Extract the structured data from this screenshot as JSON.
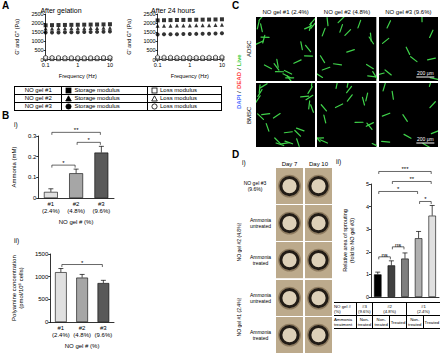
{
  "chart_data": [
    {
      "type": "scatter",
      "title": "After gelation",
      "x_label": "Frequency (Hz)",
      "y_label": "G' and G'' (Pa)",
      "log": "x",
      "grid": false,
      "x": [
        0.1,
        0.158,
        0.251,
        0.398,
        0.631,
        1,
        1.585,
        2.512,
        3.981,
        6.31,
        10
      ],
      "xlim": [
        0.1,
        10
      ],
      "xticks": [
        0.1,
        1,
        10
      ],
      "ylim": [
        0,
        2500
      ],
      "yticks": [
        0,
        500,
        1000,
        1500,
        2000,
        2500
      ],
      "series": [
        {
          "marker": "square",
          "color": "#000000",
          "values": [
            1880,
            1890,
            1895,
            1900,
            1905,
            1910,
            1915,
            1920,
            1925,
            1930,
            1940
          ]
        },
        {
          "marker": "square-open",
          "color": "#000000",
          "values": [
            60,
            55,
            50,
            48,
            46,
            45,
            46,
            48,
            52,
            58,
            66
          ]
        },
        {
          "marker": "triangle",
          "color": "#000000",
          "values": [
            1700,
            1705,
            1710,
            1715,
            1720,
            1722,
            1725,
            1730,
            1735,
            1740,
            1750
          ]
        },
        {
          "marker": "triangle-open",
          "color": "#000000",
          "values": [
            90,
            85,
            80,
            76,
            74,
            72,
            73,
            76,
            80,
            86,
            95
          ]
        },
        {
          "marker": "circle",
          "color": "#000000",
          "values": [
            1480,
            1485,
            1490,
            1495,
            1500,
            1505,
            1510,
            1515,
            1520,
            1528,
            1540
          ]
        },
        {
          "marker": "circle-open",
          "color": "#000000",
          "values": [
            120,
            115,
            110,
            106,
            102,
            100,
            101,
            104,
            108,
            115,
            125
          ]
        }
      ]
    },
    {
      "type": "scatter",
      "title": "After 24 hours",
      "x_label": "Frequency (Hz)",
      "y_label": "G' and G'' (Pa)",
      "log": "x",
      "grid": false,
      "x": [
        0.1,
        0.158,
        0.251,
        0.398,
        0.631,
        1,
        1.585,
        2.512,
        3.981,
        6.31,
        10
      ],
      "xlim": [
        0.1,
        10
      ],
      "xticks": [
        0.1,
        1,
        10
      ],
      "ylim": [
        0,
        2500
      ],
      "yticks": [
        0,
        500,
        1000,
        1500,
        2000,
        2500
      ],
      "series": [
        {
          "marker": "square",
          "color": "#000000",
          "values": [
            2150,
            2160,
            2165,
            2170,
            2175,
            2180,
            2185,
            2190,
            2195,
            2200,
            2210
          ]
        },
        {
          "marker": "square-open",
          "color": "#000000",
          "values": [
            70,
            66,
            62,
            58,
            56,
            55,
            56,
            58,
            62,
            68,
            76
          ]
        },
        {
          "marker": "triangle",
          "color": "#000000",
          "values": [
            1850,
            1855,
            1860,
            1865,
            1870,
            1875,
            1880,
            1885,
            1890,
            1896,
            1905
          ]
        },
        {
          "marker": "triangle-open",
          "color": "#000000",
          "values": [
            100,
            95,
            90,
            86,
            84,
            82,
            83,
            86,
            90,
            96,
            105
          ]
        },
        {
          "marker": "circle",
          "color": "#000000",
          "values": [
            1380,
            1385,
            1390,
            1395,
            1400,
            1405,
            1410,
            1415,
            1420,
            1428,
            1440
          ]
        },
        {
          "marker": "circle-open",
          "color": "#000000",
          "values": [
            140,
            134,
            128,
            124,
            120,
            118,
            119,
            122,
            126,
            132,
            142
          ]
        }
      ]
    },
    {
      "type": "bar",
      "x_label": "NO gel # (%)",
      "y_label": "Ammonia (mM)",
      "grid": false,
      "categories": [
        "#1\n(2.4%)",
        "#2\n(4.8%)",
        "#3\n(9.6%)"
      ],
      "values": [
        0.03,
        0.12,
        0.22
      ],
      "errors": [
        0.015,
        0.02,
        0.03
      ],
      "colors": [
        "#e0e0e0",
        "#a6a6a6",
        "#595959"
      ],
      "ylim": [
        0,
        0.3
      ],
      "yticks": [
        0,
        0.1,
        0.2,
        0.3
      ],
      "annotations": [
        {
          "between": [
            0,
            1
          ],
          "text": "*"
        },
        {
          "between": [
            1,
            2
          ],
          "text": "*"
        },
        {
          "between": [
            0,
            2
          ],
          "text": "**"
        }
      ]
    },
    {
      "type": "bar",
      "x_label": "NO gel # (%)",
      "y_label": "Polyamine concentration\n(pmol/10⁶ cells)",
      "grid": false,
      "categories": [
        "#1\n(2.4%)",
        "#2\n(4.8%)",
        "#3\n(9.6%)"
      ],
      "values": [
        1100,
        980,
        860
      ],
      "errors": [
        80,
        70,
        60
      ],
      "colors": [
        "#e0e0e0",
        "#a6a6a6",
        "#595959"
      ],
      "ylim": [
        0,
        1500
      ],
      "yticks": [
        0,
        500,
        1000,
        1500
      ],
      "annotations": [
        {
          "between": [
            0,
            2
          ],
          "text": "*"
        }
      ]
    },
    {
      "type": "bar",
      "y_label": "Relative area of sprouting\n(fold to NO gel #3)",
      "grid": false,
      "tick_labels": "y",
      "categories": [
        null,
        null,
        null,
        null,
        null
      ],
      "values": [
        1.0,
        1.4,
        1.7,
        2.6,
        3.6
      ],
      "errors": [
        0.1,
        0.2,
        0.25,
        0.3,
        0.45
      ],
      "colors": [
        "#000000",
        "#404040",
        "#7f7f7f",
        "#b0b0b0",
        "#e0e0e0"
      ],
      "ylim": [
        0,
        5
      ],
      "yticks": [
        0,
        1,
        2,
        3,
        4,
        5
      ],
      "annotations": [
        {
          "between": [
            0,
            1
          ],
          "text": "ns"
        },
        {
          "between": [
            1,
            2
          ],
          "text": "ns"
        },
        {
          "between": [
            3,
            4
          ],
          "text": "*"
        },
        {
          "between": [
            0,
            3
          ],
          "text": "*"
        },
        {
          "between": [
            1,
            4
          ],
          "text": "**"
        },
        {
          "between": [
            0,
            4
          ],
          "text": "***"
        }
      ]
    }
  ],
  "figure": {
    "panel_labels": [
      "A",
      "B",
      "C",
      "D"
    ],
    "sublabels": [
      "i)",
      "ii)"
    ],
    "rheology_legend": [
      {
        "label": "NO gel #1",
        "items": [
          {
            "marker": "square",
            "color": "#000000",
            "text": "Storage modulus"
          },
          {
            "marker": "square-open",
            "color": "#000000",
            "text": "Loss modulus"
          }
        ]
      },
      {
        "label": "NO gel #2",
        "items": [
          {
            "marker": "triangle",
            "color": "#000000",
            "text": "Storage modulus"
          },
          {
            "marker": "triangle-open",
            "color": "#000000",
            "text": "Loss modulus"
          }
        ]
      },
      {
        "label": "NO gel #3",
        "items": [
          {
            "marker": "circle",
            "color": "#000000",
            "text": "Storage modulus"
          },
          {
            "marker": "circle-open",
            "color": "#000000",
            "text": "Loss modulus"
          }
        ]
      }
    ],
    "live_dead": {
      "columns": [
        "NO gel #1 (2.4%)",
        "NO gel #2 (4.8%)",
        "NO gel #3 (9.6%)"
      ],
      "rows": [
        "ADSC",
        "BMSC"
      ],
      "stains": [
        {
          "text": "DAPI",
          "color": "#4a6cff"
        },
        {
          "text": "DEAD",
          "color": "#ff3b3b"
        },
        {
          "text": "Live",
          "color": "#33cc33"
        }
      ],
      "separator": "/",
      "scale_bar": "200 μm"
    },
    "sprouting_images": {
      "columns": [
        "Day 7",
        "Day 10"
      ],
      "groups": [
        {
          "label": "NO gel #3 (9.6%)",
          "rows": [
            null
          ]
        },
        {
          "label": "NO gel #2 (4.8%)",
          "rows": [
            "Ammonia untreated",
            "Ammonia treated"
          ]
        },
        {
          "label": "NO gel #1 (2.4%)",
          "rows": [
            "Ammonia untreated",
            "Ammonia treated"
          ]
        }
      ]
    },
    "sprouting_table": {
      "row_labels": [
        "NO gel #\n(%)",
        "Ammonia treatment"
      ],
      "rows": [
        [
          {
            "text": "#3\n(9.6%)",
            "span": 1
          },
          {
            "text": "#2\n(4.8%)",
            "span": 2
          },
          {
            "text": "#1\n(2.4%)",
            "span": 2
          }
        ],
        [
          {
            "text": "Non-treated",
            "span": 1
          },
          {
            "text": "Non-treated",
            "span": 1
          },
          {
            "text": "Treated",
            "span": 1
          },
          {
            "text": "Non-treated",
            "span": 1
          },
          {
            "text": "Treated",
            "span": 1
          }
        ]
      ]
    }
  }
}
